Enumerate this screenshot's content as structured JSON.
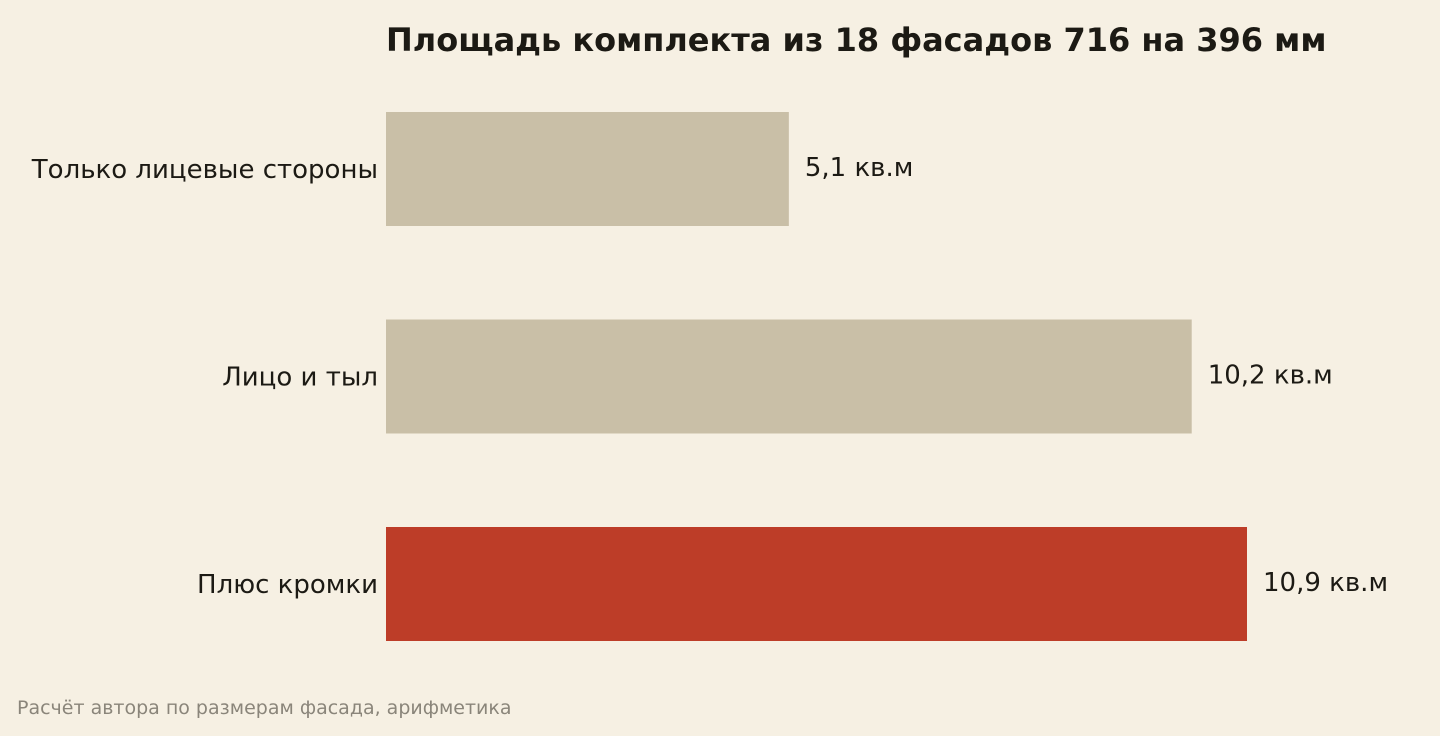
{
  "chart_data": {
    "type": "bar",
    "orientation": "horizontal",
    "title": "Площадь комплекта из 18 фасадов 716 на 396 мм",
    "categories": [
      "Только лицевые стороны",
      "Лицо и тыл",
      "Плюс кромки"
    ],
    "values": [
      5.1,
      10.2,
      10.9
    ],
    "value_labels": [
      "5,1 кв.м",
      "10,2 кв.м",
      "10,9 кв.м"
    ],
    "xlim": [
      0,
      10.9
    ],
    "grid": false,
    "source": "Расчёт автора по размерам фасада, арифметика",
    "colors": {
      "background": "#f6f0e3",
      "bar": "#c9bfa7",
      "highlight": "#bd3d28",
      "text": "#1c1a14",
      "source_text": "#8a857a"
    },
    "highlight_index": 2
  }
}
